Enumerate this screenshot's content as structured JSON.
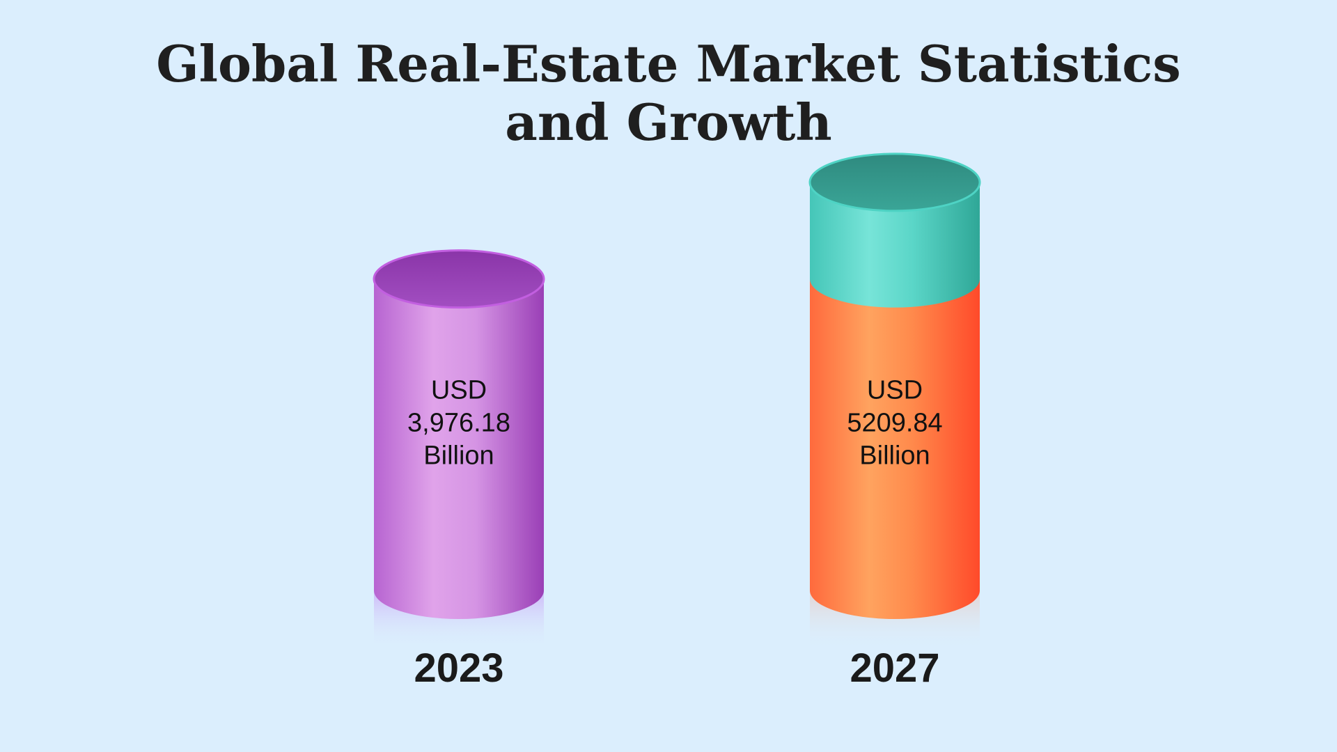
{
  "chart_data": {
    "type": "bar",
    "title_line1": "Global Real-Estate Market Statistics",
    "title_line2": "and Growth",
    "categories": [
      "2023",
      "2027"
    ],
    "values": [
      3976.18,
      5209.84
    ],
    "value_labels": [
      [
        "USD",
        "3,976.18",
        "Billion"
      ],
      [
        "USD",
        "5209.84",
        "Billion"
      ]
    ],
    "growth_segment": {
      "category": "2027",
      "from": 3976.18,
      "to": 5209.84,
      "color": "#3ec9bb"
    },
    "colors": {
      "background": "#dbeefd",
      "bar_2023": "#c77ee0",
      "bar_2027": "#ff7a45",
      "growth": "#3ec9bb"
    }
  }
}
